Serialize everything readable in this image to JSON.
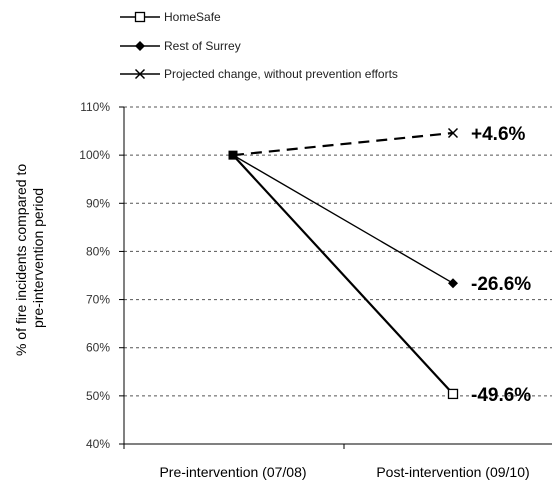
{
  "chart_data": {
    "type": "line",
    "categories": [
      "Pre-intervention (07/08)",
      "Post-intervention (09/10)"
    ],
    "ylabel_lines": [
      "% of fire incidents compared to",
      "pre-intervention period"
    ],
    "ylim": [
      40,
      110
    ],
    "yticks": [
      "40%",
      "50%",
      "60%",
      "70%",
      "80%",
      "90%",
      "100%",
      "110%"
    ],
    "ytick_values": [
      40,
      50,
      60,
      70,
      80,
      90,
      100,
      110
    ],
    "grid": true,
    "legend_position": "top-left",
    "series": [
      {
        "name": "HomeSafe",
        "values": [
          100,
          50.4
        ],
        "marker": "open-square",
        "line": "solid",
        "label": "-49.6%"
      },
      {
        "name": "Rest of Surrey",
        "values": [
          100,
          73.4
        ],
        "marker": "filled-diamond",
        "line": "solid",
        "label": "-26.6%"
      },
      {
        "name": "Projected change, without prevention efforts",
        "values": [
          100,
          104.6
        ],
        "marker": "x",
        "line": "dashed",
        "label": "+4.6%"
      }
    ]
  }
}
